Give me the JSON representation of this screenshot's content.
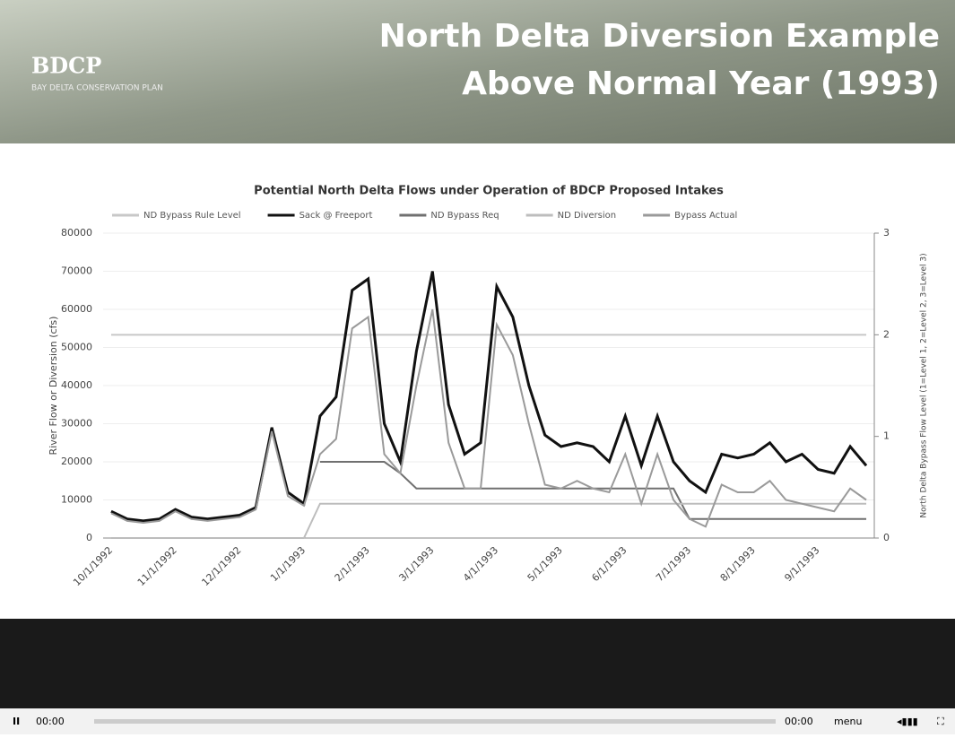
{
  "slide": {
    "logo": "BDCP",
    "logo_sub": "BAY DELTA CONSERVATION PLAN",
    "title_line1": "North Delta Diversion Example",
    "title_line2": "Above Normal Year (1993)"
  },
  "chart_data": {
    "type": "line",
    "title": "Potential North Delta Flows under Operation of BDCP Proposed Intakes",
    "y_label": "River Flow or Diversion (cfs)",
    "y2_label": "North Delta Bypass Flow Level (1=Level 1, 2=Level 2, 3=Level 3)",
    "categories": [
      "10/1/1992",
      null,
      null,
      null,
      "11/1/1992",
      null,
      null,
      null,
      "12/1/1992",
      null,
      null,
      null,
      "1/1/1993",
      null,
      null,
      null,
      "2/1/1993",
      null,
      null,
      null,
      "3/1/1993",
      null,
      null,
      null,
      "4/1/1993",
      null,
      null,
      null,
      "5/1/1993",
      null,
      null,
      null,
      "6/1/1993",
      null,
      null,
      null,
      "7/1/1993",
      null,
      null,
      null,
      "8/1/1993",
      null,
      null,
      null,
      "9/1/1993",
      null,
      null,
      null
    ],
    "ylim": [
      0,
      80000
    ],
    "yticks": [
      0,
      10000,
      20000,
      30000,
      40000,
      50000,
      60000,
      70000,
      80000
    ],
    "y2lim": [
      0,
      3
    ],
    "y2ticks": [
      0,
      1,
      2,
      3
    ],
    "grid": true,
    "series": [
      {
        "name": "ND Bypass Rule Level",
        "color": "#c8c8c8",
        "axis": "y2",
        "values": [
          2,
          2,
          2,
          2,
          2,
          2,
          2,
          2,
          2,
          2,
          2,
          2,
          2,
          2,
          2,
          2,
          2,
          2,
          2,
          2,
          2,
          2,
          2,
          2,
          2,
          2,
          2,
          2,
          2,
          2,
          2,
          2,
          2,
          2,
          2,
          2,
          2,
          2,
          2,
          2,
          2,
          2,
          2,
          2,
          2,
          2,
          2,
          2
        ]
      },
      {
        "name": "Sack @ Freeport",
        "color": "#111111",
        "values": [
          7000,
          5000,
          4500,
          5000,
          7500,
          5500,
          5000,
          5500,
          6000,
          8000,
          29000,
          12000,
          9000,
          32000,
          37000,
          65000,
          68000,
          30000,
          20000,
          49000,
          70000,
          35000,
          22000,
          25000,
          66000,
          58000,
          40000,
          27000,
          24000,
          25000,
          24000,
          20000,
          32000,
          19000,
          32000,
          20000,
          15000,
          12000,
          22000,
          21000,
          22000,
          25000,
          20000,
          22000,
          18000,
          17000,
          24000,
          19000
        ]
      },
      {
        "name": "ND Bypass Req",
        "color": "#707070",
        "values": [
          null,
          null,
          null,
          null,
          null,
          null,
          null,
          null,
          null,
          null,
          null,
          null,
          null,
          20000,
          20000,
          20000,
          20000,
          20000,
          17000,
          13000,
          13000,
          13000,
          13000,
          13000,
          13000,
          13000,
          13000,
          13000,
          13000,
          13000,
          13000,
          13000,
          13000,
          13000,
          13000,
          13000,
          5000,
          5000,
          5000,
          5000,
          5000,
          5000,
          5000,
          5000,
          5000,
          5000,
          5000,
          5000
        ]
      },
      {
        "name": "ND Diversion",
        "color": "#bdbdbd",
        "values": [
          0,
          0,
          0,
          0,
          0,
          0,
          0,
          0,
          0,
          0,
          0,
          0,
          0,
          9000,
          9000,
          9000,
          9000,
          9000,
          9000,
          9000,
          9000,
          9000,
          9000,
          9000,
          9000,
          9000,
          9000,
          9000,
          9000,
          9000,
          9000,
          9000,
          9000,
          9000,
          9000,
          9000,
          9000,
          9000,
          9000,
          9000,
          9000,
          9000,
          9000,
          9000,
          9000,
          9000,
          9000,
          9000
        ]
      },
      {
        "name": "Bypass Actual",
        "color": "#9a9a9a",
        "values": [
          6500,
          4500,
          4000,
          4500,
          7000,
          5000,
          4500,
          5000,
          5500,
          7500,
          28000,
          11000,
          8500,
          22000,
          26000,
          55000,
          58000,
          22000,
          17000,
          40000,
          60000,
          25000,
          13000,
          13000,
          56000,
          48000,
          30000,
          14000,
          13000,
          15000,
          13000,
          12000,
          22000,
          9000,
          22000,
          10000,
          5000,
          3000,
          14000,
          12000,
          12000,
          15000,
          10000,
          9000,
          8000,
          7000,
          13000,
          10000
        ]
      }
    ]
  },
  "player": {
    "time_left": "00:00",
    "time_right": "00:00",
    "menu": "menu"
  }
}
